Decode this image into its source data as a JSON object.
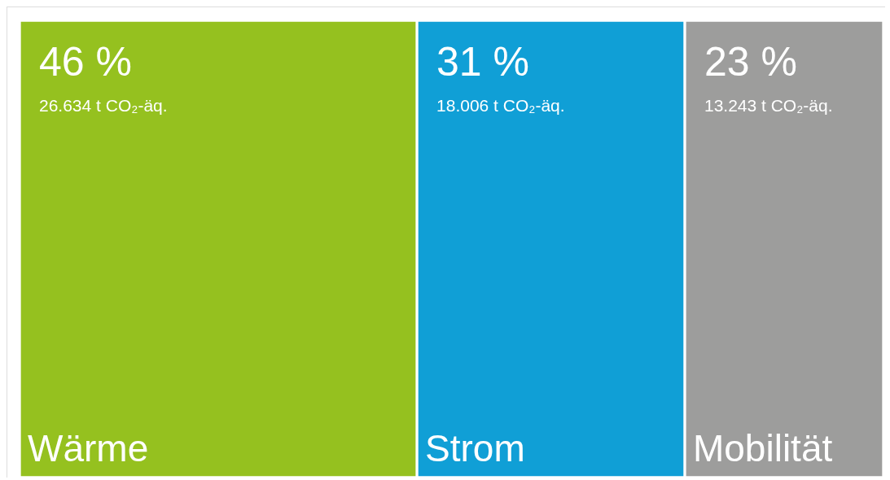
{
  "chart_data": {
    "type": "other",
    "categories": [
      "Wärme",
      "Strom",
      "Mobilität"
    ],
    "series": [
      {
        "values": [
          46,
          31,
          23
        ],
        "value_labels": [
          "46 %",
          "31 %",
          "23 %"
        ],
        "colors": [
          "#95c11f",
          "#109fd6",
          "#9d9d9c"
        ]
      }
    ],
    "annotations": [
      "26.634 t CO₂-äq.",
      "18.006 t CO₂-äq.",
      "13.243 t CO₂-äq."
    ]
  }
}
